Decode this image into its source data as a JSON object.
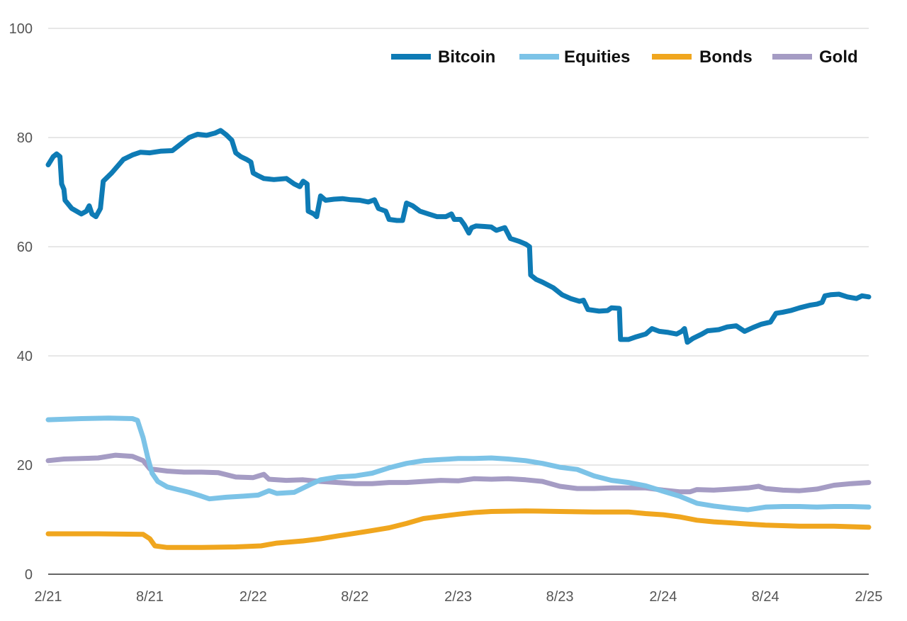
{
  "chart_data": {
    "type": "line",
    "title": "",
    "xlabel": "",
    "ylabel": "",
    "ylim": [
      0,
      100
    ],
    "yticks": [
      0,
      20,
      40,
      60,
      80,
      100
    ],
    "xlim": [
      "2021-02",
      "2025-02"
    ],
    "xticks": [
      {
        "label": "2/21",
        "date": "2021-02"
      },
      {
        "label": "8/21",
        "date": "2021-08"
      },
      {
        "label": "2/22",
        "date": "2022-02"
      },
      {
        "label": "8/22",
        "date": "2022-08"
      },
      {
        "label": "2/23",
        "date": "2023-02"
      },
      {
        "label": "8/23",
        "date": "2023-08"
      },
      {
        "label": "2/24",
        "date": "2024-02"
      },
      {
        "label": "8/24",
        "date": "2024-08"
      },
      {
        "label": "2/25",
        "date": "2025-02"
      }
    ],
    "grid": "horizontal",
    "legend_position": "top-right",
    "series": [
      {
        "name": "Bitcoin",
        "color": "#0e7bb5",
        "points": [
          [
            "2021-02-01",
            75
          ],
          [
            "2021-02-10",
            76.5
          ],
          [
            "2021-02-16",
            77
          ],
          [
            "2021-02-22",
            76.5
          ],
          [
            "2021-02-25",
            71.5
          ],
          [
            "2021-03-01",
            70.5
          ],
          [
            "2021-03-03",
            68.5
          ],
          [
            "2021-03-15",
            67
          ],
          [
            "2021-04-01",
            66
          ],
          [
            "2021-04-10",
            66.5
          ],
          [
            "2021-04-15",
            67.5
          ],
          [
            "2021-04-20",
            66
          ],
          [
            "2021-04-27",
            65.5
          ],
          [
            "2021-05-05",
            67
          ],
          [
            "2021-05-10",
            72
          ],
          [
            "2021-05-25",
            73.5
          ],
          [
            "2021-06-15",
            76
          ],
          [
            "2021-07-01",
            76.8
          ],
          [
            "2021-07-15",
            77.3
          ],
          [
            "2021-08-01",
            77.2
          ],
          [
            "2021-08-20",
            77.5
          ],
          [
            "2021-09-10",
            77.6
          ],
          [
            "2021-09-25",
            78.8
          ],
          [
            "2021-10-10",
            80
          ],
          [
            "2021-10-25",
            80.6
          ],
          [
            "2021-11-10",
            80.4
          ],
          [
            "2021-11-25",
            80.8
          ],
          [
            "2021-12-05",
            81.3
          ],
          [
            "2021-12-15",
            80.5
          ],
          [
            "2021-12-25",
            79.5
          ],
          [
            "2022-01-01",
            77.2
          ],
          [
            "2022-01-10",
            76.5
          ],
          [
            "2022-01-20",
            76
          ],
          [
            "2022-01-28",
            75.5
          ],
          [
            "2022-02-01",
            73.5
          ],
          [
            "2022-02-10",
            73
          ],
          [
            "2022-02-20",
            72.5
          ],
          [
            "2022-03-10",
            72.3
          ],
          [
            "2022-04-01",
            72.5
          ],
          [
            "2022-04-15",
            71.5
          ],
          [
            "2022-04-25",
            71
          ],
          [
            "2022-05-01",
            72
          ],
          [
            "2022-05-08",
            71.5
          ],
          [
            "2022-05-10",
            66.5
          ],
          [
            "2022-05-20",
            66
          ],
          [
            "2022-05-25",
            65.5
          ],
          [
            "2022-06-01",
            69.3
          ],
          [
            "2022-06-10",
            68.5
          ],
          [
            "2022-06-25",
            68.7
          ],
          [
            "2022-07-10",
            68.8
          ],
          [
            "2022-07-25",
            68.6
          ],
          [
            "2022-08-10",
            68.5
          ],
          [
            "2022-08-25",
            68.2
          ],
          [
            "2022-09-05",
            68.6
          ],
          [
            "2022-09-12",
            67
          ],
          [
            "2022-09-25",
            66.5
          ],
          [
            "2022-10-01",
            65
          ],
          [
            "2022-10-15",
            64.8
          ],
          [
            "2022-10-25",
            64.8
          ],
          [
            "2022-11-01",
            68
          ],
          [
            "2022-11-12",
            67.5
          ],
          [
            "2022-11-25",
            66.5
          ],
          [
            "2022-12-10",
            66
          ],
          [
            "2022-12-25",
            65.5
          ],
          [
            "2023-01-10",
            65.5
          ],
          [
            "2023-01-20",
            66
          ],
          [
            "2023-01-25",
            65
          ],
          [
            "2023-02-05",
            65
          ],
          [
            "2023-02-12",
            64
          ],
          [
            "2023-02-20",
            62.5
          ],
          [
            "2023-02-25",
            63.5
          ],
          [
            "2023-03-05",
            63.8
          ],
          [
            "2023-03-20",
            63.7
          ],
          [
            "2023-04-01",
            63.6
          ],
          [
            "2023-04-10",
            63
          ],
          [
            "2023-04-25",
            63.5
          ],
          [
            "2023-05-05",
            61.5
          ],
          [
            "2023-05-20",
            61
          ],
          [
            "2023-06-01",
            60.5
          ],
          [
            "2023-06-08",
            60
          ],
          [
            "2023-06-10",
            54.8
          ],
          [
            "2023-06-20",
            54
          ],
          [
            "2023-07-01",
            53.5
          ],
          [
            "2023-07-20",
            52.5
          ],
          [
            "2023-08-05",
            51.2
          ],
          [
            "2023-08-20",
            50.5
          ],
          [
            "2023-09-05",
            50
          ],
          [
            "2023-09-12",
            50.2
          ],
          [
            "2023-09-20",
            48.5
          ],
          [
            "2023-10-10",
            48.2
          ],
          [
            "2023-10-25",
            48.3
          ],
          [
            "2023-11-01",
            48.8
          ],
          [
            "2023-11-15",
            48.7
          ],
          [
            "2023-11-17",
            43
          ],
          [
            "2023-12-01",
            43
          ],
          [
            "2023-12-15",
            43.5
          ],
          [
            "2024-01-01",
            44
          ],
          [
            "2024-01-12",
            45
          ],
          [
            "2024-01-25",
            44.5
          ],
          [
            "2024-02-10",
            44.3
          ],
          [
            "2024-02-25",
            44
          ],
          [
            "2024-03-05",
            44.5
          ],
          [
            "2024-03-10",
            45
          ],
          [
            "2024-03-15",
            42.5
          ],
          [
            "2024-03-25",
            43.2
          ],
          [
            "2024-04-10",
            44
          ],
          [
            "2024-04-20",
            44.6
          ],
          [
            "2024-05-10",
            44.8
          ],
          [
            "2024-05-25",
            45.3
          ],
          [
            "2024-06-10",
            45.5
          ],
          [
            "2024-06-25",
            44.5
          ],
          [
            "2024-07-10",
            45.2
          ],
          [
            "2024-07-25",
            45.8
          ],
          [
            "2024-08-10",
            46.2
          ],
          [
            "2024-08-20",
            47.8
          ],
          [
            "2024-09-01",
            48
          ],
          [
            "2024-09-15",
            48.3
          ],
          [
            "2024-10-01",
            48.8
          ],
          [
            "2024-10-20",
            49.3
          ],
          [
            "2024-11-01",
            49.5
          ],
          [
            "2024-11-10",
            49.8
          ],
          [
            "2024-11-15",
            51
          ],
          [
            "2024-11-25",
            51.2
          ],
          [
            "2024-12-10",
            51.3
          ],
          [
            "2024-12-25",
            50.8
          ],
          [
            "2025-01-10",
            50.5
          ],
          [
            "2025-01-20",
            51
          ],
          [
            "2025-02-01",
            50.8
          ]
        ]
      },
      {
        "name": "Equities",
        "color": "#7cc3e7",
        "points": [
          [
            "2021-02-01",
            28.3
          ],
          [
            "2021-04-01",
            28.5
          ],
          [
            "2021-05-20",
            28.6
          ],
          [
            "2021-07-01",
            28.5
          ],
          [
            "2021-07-10",
            28.2
          ],
          [
            "2021-07-20",
            25
          ],
          [
            "2021-07-28",
            21.5
          ],
          [
            "2021-08-05",
            18.5
          ],
          [
            "2021-08-15",
            17
          ],
          [
            "2021-09-01",
            16
          ],
          [
            "2021-09-20",
            15.5
          ],
          [
            "2021-10-10",
            15
          ],
          [
            "2021-11-01",
            14.3
          ],
          [
            "2021-11-15",
            13.8
          ],
          [
            "2021-12-15",
            14.1
          ],
          [
            "2022-01-15",
            14.3
          ],
          [
            "2022-02-10",
            14.5
          ],
          [
            "2022-03-01",
            15.3
          ],
          [
            "2022-03-15",
            14.8
          ],
          [
            "2022-04-15",
            15
          ],
          [
            "2022-05-15",
            16.5
          ],
          [
            "2022-06-01",
            17.3
          ],
          [
            "2022-07-01",
            17.8
          ],
          [
            "2022-08-01",
            18
          ],
          [
            "2022-09-01",
            18.5
          ],
          [
            "2022-10-01",
            19.5
          ],
          [
            "2022-11-01",
            20.3
          ],
          [
            "2022-12-01",
            20.8
          ],
          [
            "2023-01-01",
            21
          ],
          [
            "2023-02-01",
            21.2
          ],
          [
            "2023-03-01",
            21.2
          ],
          [
            "2023-04-01",
            21.3
          ],
          [
            "2023-05-01",
            21.1
          ],
          [
            "2023-06-01",
            20.8
          ],
          [
            "2023-07-01",
            20.3
          ],
          [
            "2023-08-01",
            19.6
          ],
          [
            "2023-09-01",
            19.2
          ],
          [
            "2023-10-01",
            18
          ],
          [
            "2023-11-01",
            17.2
          ],
          [
            "2023-12-01",
            16.8
          ],
          [
            "2024-01-01",
            16.2
          ],
          [
            "2024-02-01",
            15.2
          ],
          [
            "2024-03-01",
            14.3
          ],
          [
            "2024-04-01",
            13
          ],
          [
            "2024-05-01",
            12.5
          ],
          [
            "2024-06-01",
            12.1
          ],
          [
            "2024-07-01",
            11.8
          ],
          [
            "2024-08-01",
            12.3
          ],
          [
            "2024-09-01",
            12.4
          ],
          [
            "2024-10-01",
            12.4
          ],
          [
            "2024-11-01",
            12.3
          ],
          [
            "2024-12-01",
            12.4
          ],
          [
            "2025-01-01",
            12.4
          ],
          [
            "2025-02-01",
            12.3
          ]
        ]
      },
      {
        "name": "Bonds",
        "color": "#f0a61e",
        "points": [
          [
            "2021-02-01",
            7.4
          ],
          [
            "2021-05-01",
            7.4
          ],
          [
            "2021-07-20",
            7.3
          ],
          [
            "2021-08-01",
            6.5
          ],
          [
            "2021-08-10",
            5.2
          ],
          [
            "2021-09-01",
            4.9
          ],
          [
            "2021-11-01",
            4.9
          ],
          [
            "2022-01-01",
            5
          ],
          [
            "2022-02-15",
            5.2
          ],
          [
            "2022-03-15",
            5.7
          ],
          [
            "2022-05-01",
            6.1
          ],
          [
            "2022-06-01",
            6.5
          ],
          [
            "2022-07-01",
            7
          ],
          [
            "2022-08-01",
            7.5
          ],
          [
            "2022-09-01",
            8
          ],
          [
            "2022-10-01",
            8.5
          ],
          [
            "2022-11-01",
            9.3
          ],
          [
            "2022-12-01",
            10.2
          ],
          [
            "2023-01-01",
            10.6
          ],
          [
            "2023-02-01",
            11
          ],
          [
            "2023-03-01",
            11.3
          ],
          [
            "2023-04-01",
            11.5
          ],
          [
            "2023-06-01",
            11.6
          ],
          [
            "2023-08-01",
            11.5
          ],
          [
            "2023-10-01",
            11.4
          ],
          [
            "2023-12-01",
            11.4
          ],
          [
            "2024-01-01",
            11.1
          ],
          [
            "2024-02-01",
            10.9
          ],
          [
            "2024-03-01",
            10.5
          ],
          [
            "2024-04-01",
            9.9
          ],
          [
            "2024-05-01",
            9.6
          ],
          [
            "2024-06-01",
            9.4
          ],
          [
            "2024-07-01",
            9.2
          ],
          [
            "2024-08-01",
            9
          ],
          [
            "2024-10-01",
            8.8
          ],
          [
            "2024-12-01",
            8.8
          ],
          [
            "2025-02-01",
            8.6
          ]
        ]
      },
      {
        "name": "Gold",
        "color": "#a59cc4",
        "points": [
          [
            "2021-02-01",
            20.8
          ],
          [
            "2021-03-01",
            21.1
          ],
          [
            "2021-05-01",
            21.3
          ],
          [
            "2021-06-01",
            21.8
          ],
          [
            "2021-07-01",
            21.6
          ],
          [
            "2021-07-20",
            20.8
          ],
          [
            "2021-08-01",
            19.3
          ],
          [
            "2021-09-01",
            18.9
          ],
          [
            "2021-10-01",
            18.7
          ],
          [
            "2021-11-01",
            18.7
          ],
          [
            "2021-12-01",
            18.6
          ],
          [
            "2022-01-01",
            17.8
          ],
          [
            "2022-02-01",
            17.7
          ],
          [
            "2022-02-20",
            18.3
          ],
          [
            "2022-03-01",
            17.4
          ],
          [
            "2022-04-01",
            17.2
          ],
          [
            "2022-05-01",
            17.3
          ],
          [
            "2022-06-01",
            17
          ],
          [
            "2022-07-01",
            16.8
          ],
          [
            "2022-08-01",
            16.6
          ],
          [
            "2022-09-01",
            16.6
          ],
          [
            "2022-10-01",
            16.8
          ],
          [
            "2022-11-01",
            16.8
          ],
          [
            "2022-12-01",
            17
          ],
          [
            "2023-01-01",
            17.2
          ],
          [
            "2023-02-01",
            17.1
          ],
          [
            "2023-03-01",
            17.5
          ],
          [
            "2023-04-01",
            17.4
          ],
          [
            "2023-05-01",
            17.5
          ],
          [
            "2023-06-01",
            17.3
          ],
          [
            "2023-07-01",
            17
          ],
          [
            "2023-08-01",
            16.1
          ],
          [
            "2023-09-01",
            15.7
          ],
          [
            "2023-10-01",
            15.7
          ],
          [
            "2023-11-01",
            15.8
          ],
          [
            "2023-12-01",
            15.8
          ],
          [
            "2024-01-01",
            15.8
          ],
          [
            "2024-02-01",
            15.4
          ],
          [
            "2024-03-01",
            15.1
          ],
          [
            "2024-03-20",
            15.1
          ],
          [
            "2024-04-01",
            15.5
          ],
          [
            "2024-05-01",
            15.4
          ],
          [
            "2024-06-01",
            15.6
          ],
          [
            "2024-07-01",
            15.8
          ],
          [
            "2024-07-20",
            16.1
          ],
          [
            "2024-08-01",
            15.7
          ],
          [
            "2024-09-01",
            15.4
          ],
          [
            "2024-10-01",
            15.3
          ],
          [
            "2024-11-01",
            15.6
          ],
          [
            "2024-12-01",
            16.3
          ],
          [
            "2025-01-01",
            16.6
          ],
          [
            "2025-02-01",
            16.8
          ]
        ]
      }
    ]
  }
}
